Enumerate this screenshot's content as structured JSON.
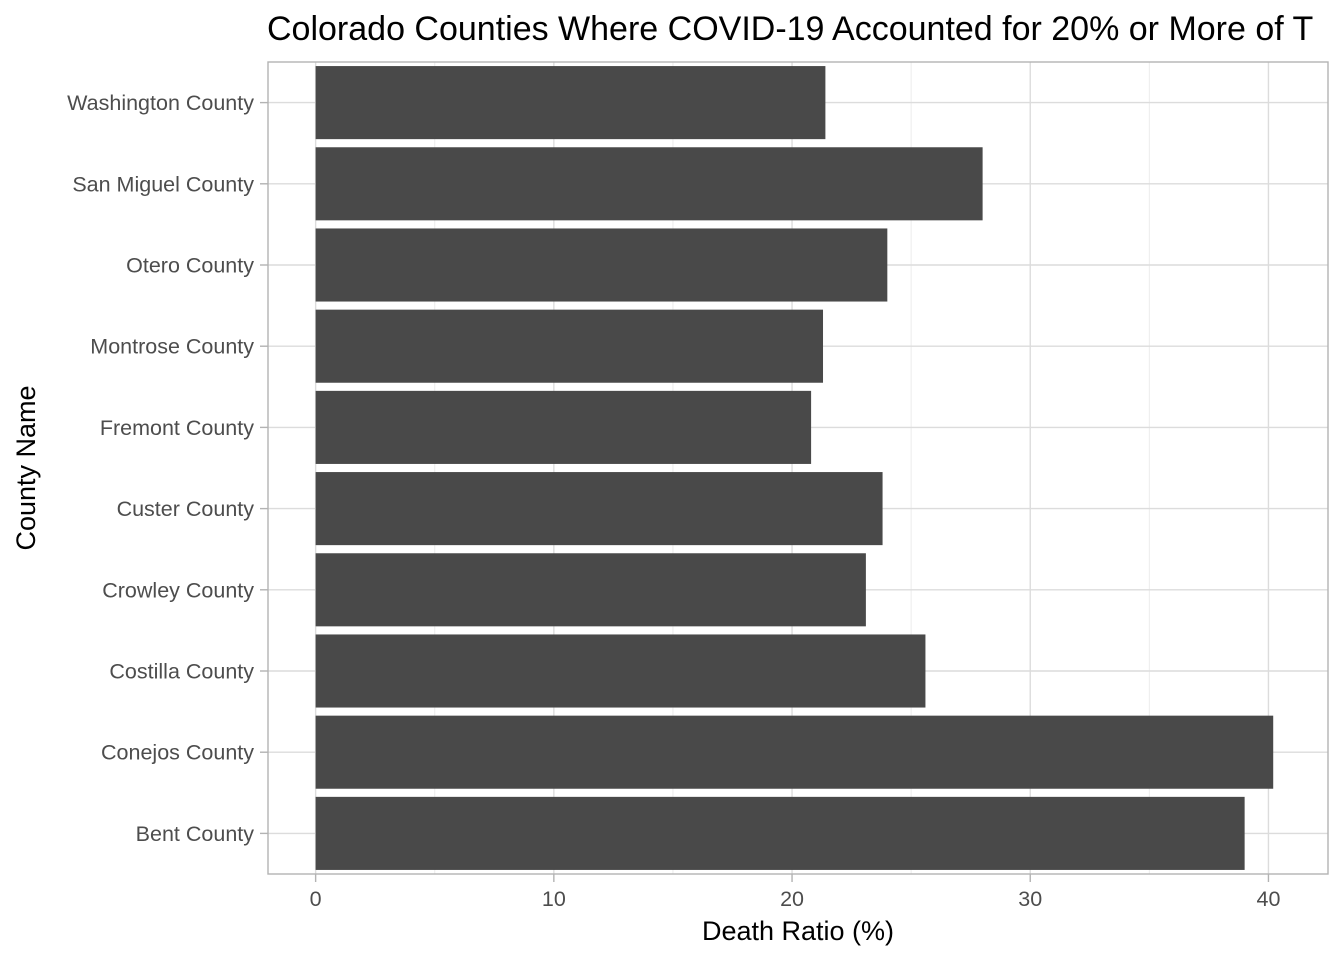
{
  "chart_data": {
    "type": "bar",
    "orientation": "horizontal",
    "title": "Colorado Counties Where COVID-19 Accounted for 20% or More of T",
    "xlabel": "Death Ratio (%)",
    "ylabel": "County Name",
    "categories": [
      "Bent County",
      "Conejos County",
      "Costilla County",
      "Crowley County",
      "Custer County",
      "Fremont County",
      "Montrose County",
      "Otero County",
      "San Miguel County",
      "Washington County"
    ],
    "values": [
      39.0,
      40.2,
      25.6,
      23.1,
      23.8,
      20.8,
      21.3,
      24.0,
      28.0,
      21.4
    ],
    "xlim": [
      -2,
      42.5
    ],
    "xticks": [
      0,
      10,
      20,
      30,
      40
    ],
    "xminor": [
      5,
      15,
      25,
      35
    ],
    "grid": true,
    "legend": "none",
    "colors": {
      "bar": "#494949",
      "grid_major": "#dcdcdc",
      "grid_minor": "#ececec",
      "border": "#b3b3b3",
      "tick_text": "#4d4d4d"
    }
  }
}
